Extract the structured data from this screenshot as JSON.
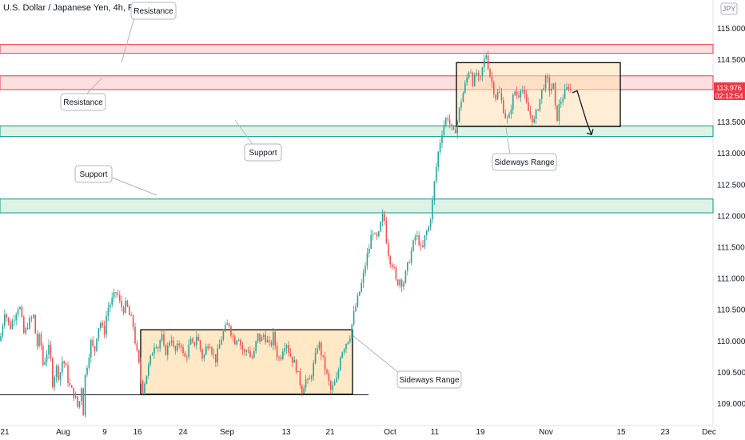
{
  "header": {
    "title": "U.S. Dollar / Japanese Yen, 4h, FXCM",
    "currency_badge": "JPY"
  },
  "price_tag": {
    "price": "113.976",
    "countdown": "02:12:54",
    "color": "#f23645"
  },
  "colors": {
    "up": "#26a69a",
    "down": "#ef5350",
    "resistance": "#f23645",
    "resistance_fill": "#fbd5d5",
    "support": "#089981",
    "support_fill": "#d4eedd",
    "range_fill": "#ffe0b2"
  },
  "chart_data": {
    "type": "candlestick",
    "title": "U.S. Dollar / Japanese Yen, 4h, FXCM",
    "ylim": [
      108.75,
      115.35
    ],
    "y_ticks": [
      "115.000",
      "114.500",
      "114.000",
      "113.500",
      "113.000",
      "112.500",
      "112.000",
      "111.500",
      "111.000",
      "110.500",
      "110.000",
      "109.500",
      "109.000"
    ],
    "x_ticks": [
      "21",
      "Aug",
      "9",
      "16",
      "24",
      "Sep",
      "13",
      "21",
      "Oct",
      "11",
      "19",
      "Nov",
      "15",
      "23",
      "Dec"
    ],
    "close_path": [
      [
        0,
        110.0
      ],
      [
        6,
        110.5
      ],
      [
        12,
        110.2
      ],
      [
        18,
        110.4
      ],
      [
        24,
        110.6
      ],
      [
        30,
        110.1
      ],
      [
        36,
        110.3
      ],
      [
        42,
        110.4
      ],
      [
        46,
        109.9
      ],
      [
        50,
        110.1
      ],
      [
        54,
        109.6
      ],
      [
        58,
        109.8
      ],
      [
        62,
        109.9
      ],
      [
        66,
        109.3
      ],
      [
        70,
        109.6
      ],
      [
        74,
        109.4
      ],
      [
        78,
        109.7
      ],
      [
        82,
        109.6
      ],
      [
        86,
        109.3
      ],
      [
        90,
        109.2
      ],
      [
        94,
        109.1
      ],
      [
        98,
        108.9
      ],
      [
        102,
        109.3
      ],
      [
        104,
        108.8
      ],
      [
        106,
        109.4
      ],
      [
        110,
        109.7
      ],
      [
        114,
        110.0
      ],
      [
        118,
        109.8
      ],
      [
        122,
        110.2
      ],
      [
        126,
        110.3
      ],
      [
        130,
        110.1
      ],
      [
        134,
        110.5
      ],
      [
        138,
        110.6
      ],
      [
        142,
        110.7
      ],
      [
        146,
        110.8
      ],
      [
        150,
        110.6
      ],
      [
        154,
        110.5
      ],
      [
        158,
        110.6
      ],
      [
        162,
        110.4
      ],
      [
        166,
        110.3
      ],
      [
        170,
        109.9
      ],
      [
        174,
        109.6
      ],
      [
        178,
        109.2
      ],
      [
        182,
        109.4
      ],
      [
        186,
        109.6
      ],
      [
        190,
        109.8
      ],
      [
        194,
        110.0
      ],
      [
        198,
        109.9
      ],
      [
        202,
        110.1
      ],
      [
        206,
        109.8
      ],
      [
        210,
        109.9
      ],
      [
        214,
        110.1
      ],
      [
        218,
        109.8
      ],
      [
        222,
        109.9
      ],
      [
        226,
        110.0
      ],
      [
        230,
        109.7
      ],
      [
        234,
        109.8
      ],
      [
        238,
        110.0
      ],
      [
        242,
        109.9
      ],
      [
        246,
        110.1
      ],
      [
        250,
        109.9
      ],
      [
        254,
        109.7
      ],
      [
        258,
        109.9
      ],
      [
        262,
        110.0
      ],
      [
        266,
        109.8
      ],
      [
        270,
        109.7
      ],
      [
        274,
        109.9
      ],
      [
        278,
        110.1
      ],
      [
        282,
        110.2
      ],
      [
        286,
        110.3
      ],
      [
        290,
        110.1
      ],
      [
        294,
        110.0
      ],
      [
        298,
        110.1
      ],
      [
        302,
        109.9
      ],
      [
        306,
        109.8
      ],
      [
        310,
        109.9
      ],
      [
        314,
        109.7
      ],
      [
        318,
        109.8
      ],
      [
        322,
        110.1
      ],
      [
        326,
        110.0
      ],
      [
        330,
        110.1
      ],
      [
        334,
        110.0
      ],
      [
        338,
        109.9
      ],
      [
        342,
        110.1
      ],
      [
        346,
        109.8
      ],
      [
        350,
        109.7
      ],
      [
        354,
        109.9
      ],
      [
        358,
        110.0
      ],
      [
        362,
        109.8
      ],
      [
        366,
        109.7
      ],
      [
        370,
        109.6
      ],
      [
        374,
        109.4
      ],
      [
        378,
        109.2
      ],
      [
        382,
        109.4
      ],
      [
        386,
        109.3
      ],
      [
        390,
        109.5
      ],
      [
        394,
        109.7
      ],
      [
        398,
        110.0
      ],
      [
        402,
        109.8
      ],
      [
        406,
        109.6
      ],
      [
        410,
        109.4
      ],
      [
        414,
        109.2
      ],
      [
        418,
        109.3
      ],
      [
        422,
        109.4
      ],
      [
        426,
        109.8
      ],
      [
        430,
        109.9
      ],
      [
        434,
        110.0
      ],
      [
        438,
        110.1
      ],
      [
        442,
        110.4
      ],
      [
        446,
        110.6
      ],
      [
        450,
        110.8
      ],
      [
        454,
        111.0
      ],
      [
        458,
        111.3
      ],
      [
        462,
        111.5
      ],
      [
        466,
        111.8
      ],
      [
        470,
        111.6
      ],
      [
        474,
        111.7
      ],
      [
        478,
        112.0
      ],
      [
        482,
        111.9
      ],
      [
        484,
        111.5
      ],
      [
        488,
        111.3
      ],
      [
        492,
        111.2
      ],
      [
        496,
        110.9
      ],
      [
        500,
        111.0
      ],
      [
        504,
        110.9
      ],
      [
        508,
        111.1
      ],
      [
        512,
        111.3
      ],
      [
        516,
        111.5
      ],
      [
        520,
        111.7
      ],
      [
        524,
        111.6
      ],
      [
        528,
        111.4
      ],
      [
        532,
        111.7
      ],
      [
        536,
        111.8
      ],
      [
        540,
        112.1
      ],
      [
        544,
        112.6
      ],
      [
        548,
        113.0
      ],
      [
        552,
        113.3
      ],
      [
        556,
        113.5
      ],
      [
        560,
        113.6
      ],
      [
        564,
        113.4
      ],
      [
        568,
        113.3
      ],
      [
        572,
        113.5
      ],
      [
        576,
        113.8
      ],
      [
        580,
        114.0
      ],
      [
        584,
        114.2
      ],
      [
        588,
        114.4
      ],
      [
        592,
        114.1
      ],
      [
        596,
        114.3
      ],
      [
        600,
        114.1
      ],
      [
        604,
        114.4
      ],
      [
        608,
        114.6
      ],
      [
        612,
        114.3
      ],
      [
        616,
        114.1
      ],
      [
        620,
        113.9
      ],
      [
        624,
        114.0
      ],
      [
        628,
        113.8
      ],
      [
        632,
        113.6
      ],
      [
        636,
        113.5
      ],
      [
        640,
        113.8
      ],
      [
        644,
        114.0
      ],
      [
        648,
        113.9
      ],
      [
        652,
        114.1
      ],
      [
        656,
        113.9
      ],
      [
        660,
        113.7
      ],
      [
        664,
        113.6
      ],
      [
        668,
        113.5
      ],
      [
        672,
        113.7
      ],
      [
        676,
        113.9
      ],
      [
        680,
        114.1
      ],
      [
        684,
        114.2
      ],
      [
        688,
        114.0
      ],
      [
        692,
        114.1
      ],
      [
        696,
        113.5
      ],
      [
        700,
        113.8
      ],
      [
        704,
        113.9
      ],
      [
        708,
        114.0
      ],
      [
        712,
        114.1
      ],
      [
        716,
        113.9
      ]
    ],
    "projection": [
      [
        716,
        113.97
      ],
      [
        722,
        114.0
      ],
      [
        728,
        113.75
      ],
      [
        734,
        113.5
      ],
      [
        740,
        113.3
      ]
    ],
    "resistance_zones": [
      {
        "top": 114.74,
        "bottom": 114.6
      },
      {
        "top": 114.24,
        "bottom": 114.02
      }
    ],
    "support_zones": [
      {
        "top": 113.44,
        "bottom": 113.27
      },
      {
        "top": 112.27,
        "bottom": 112.05
      }
    ],
    "support_line": {
      "price": 109.14
    },
    "ranges": [
      {
        "top": 110.18,
        "bottom": 109.15
      },
      {
        "top": 114.45,
        "bottom": 113.43
      }
    ],
    "annotations": [
      "Resistance",
      "Resistance",
      "Support",
      "Support",
      "Sideways Range",
      "Sideways Range"
    ]
  }
}
